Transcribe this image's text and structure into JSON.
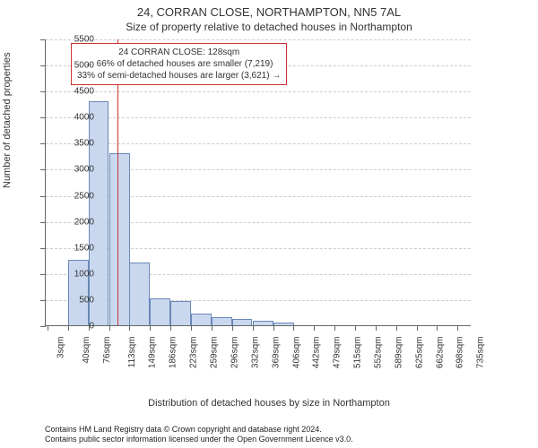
{
  "title": "24, CORRAN CLOSE, NORTHAMPTON, NN5 7AL",
  "subtitle": "Size of property relative to detached houses in Northampton",
  "ylabel": "Number of detached properties",
  "xlabel": "Distribution of detached houses by size in Northampton",
  "histogram": {
    "type": "histogram",
    "bar_color": "#c9d8ef",
    "bar_border": "#6a88b8",
    "background_color": "#ffffff",
    "grid_color": "#cccccc",
    "axis_color": "#666666",
    "ylim": [
      0,
      5500
    ],
    "ytick_step": 500,
    "xlim": [
      0,
      760
    ],
    "bar_width_sqm": 36.6,
    "categories": [
      "3sqm",
      "40sqm",
      "76sqm",
      "113sqm",
      "149sqm",
      "186sqm",
      "223sqm",
      "259sqm",
      "296sqm",
      "332sqm",
      "369sqm",
      "406sqm",
      "442sqm",
      "479sqm",
      "515sqm",
      "552sqm",
      "589sqm",
      "625sqm",
      "662sqm",
      "698sqm",
      "735sqm"
    ],
    "x_positions": [
      3,
      40,
      76,
      113,
      149,
      186,
      223,
      259,
      296,
      332,
      369,
      406,
      442,
      479,
      515,
      552,
      589,
      625,
      662,
      698,
      735
    ],
    "values": [
      0,
      1250,
      4300,
      3300,
      1200,
      520,
      470,
      220,
      160,
      120,
      80,
      60,
      0,
      0,
      0,
      0,
      0,
      0,
      0,
      0,
      0
    ]
  },
  "marker": {
    "x_sqm": 128,
    "line_color": "#cc3333",
    "box_border": "#cc3333",
    "box_bg": "#ffffff",
    "lines": {
      "l1": "24 CORRAN CLOSE: 128sqm",
      "l2": "← 66% of detached houses are smaller (7,219)",
      "l3": "33% of semi-detached houses are larger (3,621) →"
    }
  },
  "footer": {
    "l1": "Contains HM Land Registry data © Crown copyright and database right 2024.",
    "l2": "Contains public sector information licensed under the Open Government Licence v3.0."
  },
  "style": {
    "title_fontsize": 13,
    "subtitle_fontsize": 12,
    "axis_label_fontsize": 11,
    "tick_fontsize": 10,
    "annot_fontsize": 10,
    "footer_fontsize": 9
  }
}
